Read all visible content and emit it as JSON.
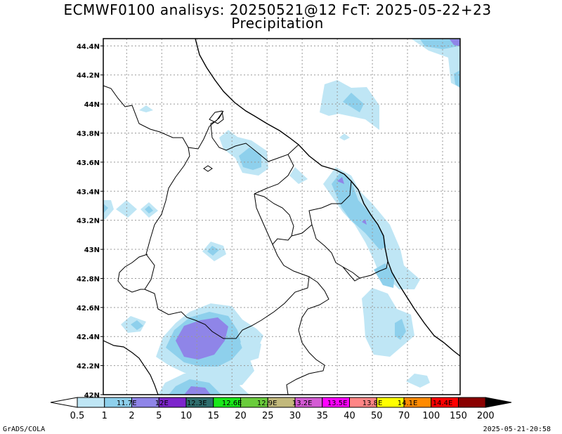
{
  "header": {
    "title": "ECMWF0100 analisys: 20250521@12 FcT: 2025-05-22+23",
    "subtitle": "Precipitation"
  },
  "map": {
    "lat_ticks": [
      "44.4N",
      "44.2N",
      "44N",
      "43.8N",
      "43.6N",
      "43.4N",
      "43.2N",
      "43N",
      "42.8N",
      "42.6N",
      "42.4N",
      "42.2N",
      "42N"
    ],
    "lon_ticks": [
      "11.7E",
      "12E",
      "12.3E",
      "12.6E",
      "12.9E",
      "13.2E",
      "13.5E",
      "13.8E",
      "14.1E",
      "14.4E"
    ],
    "lon_range": [
      11.5,
      14.55
    ],
    "lat_range": [
      42.0,
      44.45
    ],
    "grid": true
  },
  "colorbar": {
    "levels": [
      "0.5",
      "1",
      "2",
      "5",
      "10",
      "15",
      "20",
      "25",
      "30",
      "35",
      "40",
      "50",
      "70",
      "100",
      "150",
      "200"
    ],
    "colors": [
      "#ffffff",
      "#bfe6f5",
      "#8ed0ec",
      "#8f85e8",
      "#7d24cc",
      "#2f6e6e",
      "#1ae81a",
      "#6acc3c",
      "#c2b97c",
      "#d45bd4",
      "#ff00ff",
      "#ff8585",
      "#ffff00",
      "#ff8a00",
      "#ff0000",
      "#8a0000",
      "#000000"
    ]
  },
  "footer": {
    "left": "GrADS/COLA",
    "right": "2025-05-21-20:58"
  }
}
